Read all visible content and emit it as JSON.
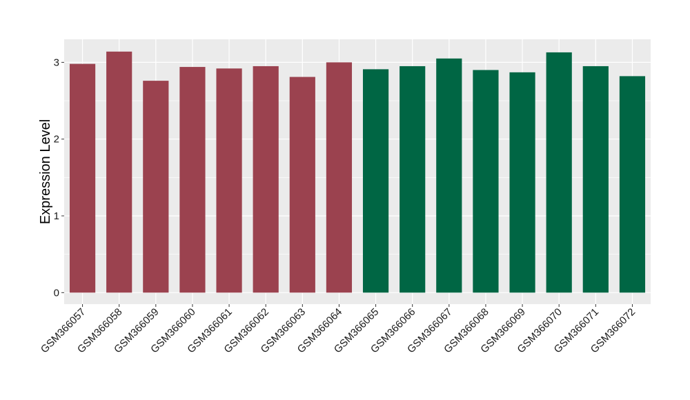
{
  "chart_data": {
    "type": "bar",
    "title": "",
    "xlabel": "",
    "ylabel": "Expression Level",
    "ylim": [
      -0.15,
      3.3
    ],
    "yticks": [
      0,
      1,
      2,
      3
    ],
    "grid": true,
    "legend": "none",
    "categories": [
      "GSM366057",
      "GSM366058",
      "GSM366059",
      "GSM366060",
      "GSM366061",
      "GSM366062",
      "GSM366063",
      "GSM366064",
      "GSM366065",
      "GSM366066",
      "GSM366067",
      "GSM366068",
      "GSM366069",
      "GSM366070",
      "GSM366071",
      "GSM366072"
    ],
    "values": [
      2.98,
      3.14,
      2.76,
      2.94,
      2.92,
      2.95,
      2.81,
      3.0,
      2.91,
      2.95,
      3.05,
      2.9,
      2.87,
      3.13,
      2.95,
      2.82
    ],
    "groups": [
      0,
      0,
      0,
      0,
      0,
      0,
      0,
      0,
      1,
      1,
      1,
      1,
      1,
      1,
      1,
      1
    ],
    "colors": [
      "#9b424f",
      "#006644"
    ],
    "panel_background": "#ebebeb",
    "grid_color": "#ffffff"
  }
}
